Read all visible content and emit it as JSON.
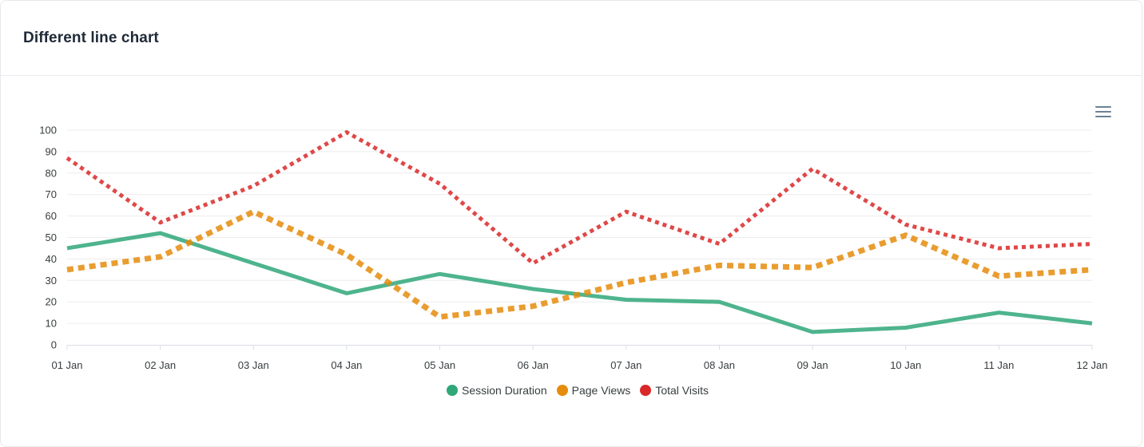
{
  "card": {
    "title": "Different line chart"
  },
  "toolbar": {
    "menu_icon": "hamburger-menu-icon"
  },
  "chart_data": {
    "type": "line",
    "title": "Different line chart",
    "categories": [
      "01 Jan",
      "02 Jan",
      "03 Jan",
      "04 Jan",
      "05 Jan",
      "06 Jan",
      "07 Jan",
      "08 Jan",
      "09 Jan",
      "10 Jan",
      "11 Jan",
      "12 Jan"
    ],
    "ylim": [
      0,
      100
    ],
    "yticks": [
      "0",
      "10",
      "20",
      "30",
      "40",
      "50",
      "60",
      "70",
      "80",
      "90",
      "100"
    ],
    "grid": true,
    "legend_position": "bottom",
    "series": [
      {
        "name": "Session Duration",
        "color": "#2fa779",
        "dash": "solid",
        "values": [
          45,
          52,
          38,
          24,
          33,
          26,
          21,
          20,
          6,
          8,
          15,
          10
        ]
      },
      {
        "name": "Page Views",
        "color": "#e58c0c",
        "dash": "dashed",
        "values": [
          35,
          41,
          62,
          42,
          13,
          18,
          29,
          37,
          36,
          51,
          32,
          35
        ]
      },
      {
        "name": "Total Visits",
        "color": "#d92828",
        "dash": "dotted",
        "values": [
          87,
          57,
          74,
          99,
          75,
          38,
          62,
          47,
          82,
          56,
          45,
          47
        ]
      }
    ]
  }
}
